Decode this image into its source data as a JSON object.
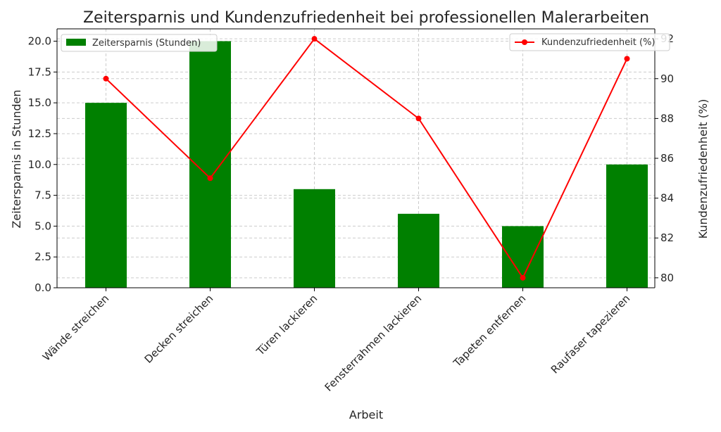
{
  "chart_data": {
    "type": "bar",
    "title": "Zeitersparnis und Kundenzufriedenheit bei professionellen Malerarbeiten",
    "xlabel": "Arbeit",
    "ylabel": "Zeitersparnis in Stunden",
    "ylabel_right": "Kundenzufriedenheit (%)",
    "categories": [
      "Wände streichen",
      "Decken streichen",
      "Türen lackieren",
      "Fensterrahmen lackieren",
      "Tapeten entfernen",
      "Raufaser tapezieren"
    ],
    "series": [
      {
        "name": "Zeitersparnis (Stunden)",
        "type": "bar",
        "axis": "left",
        "color": "#008000",
        "values": [
          15,
          20,
          8,
          6,
          5,
          10
        ]
      },
      {
        "name": "Kundenzufriedenheit (%)",
        "type": "line",
        "axis": "right",
        "color": "#ff0000",
        "values": [
          90,
          85,
          92,
          88,
          80,
          91
        ]
      }
    ],
    "ylim": [
      0,
      21
    ],
    "ylim_right": [
      79.5,
      92.5
    ],
    "yticks": [
      "0.0",
      "2.5",
      "5.0",
      "7.5",
      "10.0",
      "12.5",
      "15.0",
      "17.5",
      "20.0"
    ],
    "yticks_right": [
      "80",
      "82",
      "84",
      "86",
      "88",
      "90",
      "92"
    ],
    "grid": true,
    "legend_left_placement": "top-left",
    "legend_right_placement": "top-right"
  }
}
